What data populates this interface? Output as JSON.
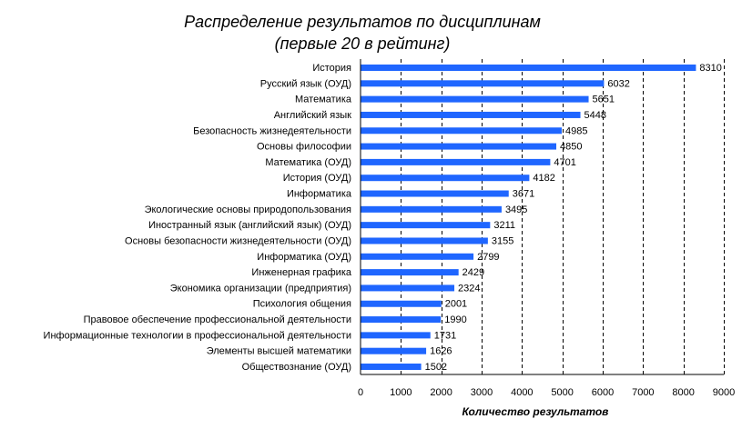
{
  "chart_data": {
    "type": "bar",
    "orientation": "horizontal",
    "title": "Распределение результатов по дисциплинам",
    "subtitle": "(первые 20 в рейтинг)",
    "xlabel": "Количество результатов",
    "ylabel": "",
    "xlim": [
      0,
      9000
    ],
    "xticks": [
      "0",
      "1000",
      "2000",
      "3000",
      "4000",
      "5000",
      "6000",
      "7000",
      "8000",
      "9000"
    ],
    "grid": "vertical dashed",
    "bar_color": "#1f66ff",
    "categories": [
      "История",
      "Русский язык (ОУД)",
      "Математика",
      "Английский язык",
      "Безопасность жизнедеятельности",
      "Основы философии",
      "Математика (ОУД)",
      "История (ОУД)",
      "Информатика",
      "Экологические основы природопользования",
      "Иностранный язык (английский язык) (ОУД)",
      "Основы безопасности жизнедеятельности (ОУД)",
      "Информатика (ОУД)",
      "Инженерная графика",
      "Экономика организации (предприятия)",
      "Психология общения",
      "Правовое обеспечение профессиональной деятельности",
      "Информационные технологии в профессиональной деятельности",
      "Элементы высшей математики",
      "Обществознание (ОУД)"
    ],
    "values": [
      8310,
      6032,
      5651,
      5448,
      4985,
      4850,
      4701,
      4182,
      3671,
      3495,
      3211,
      3155,
      2799,
      2429,
      2324,
      2001,
      1990,
      1731,
      1626,
      1502
    ]
  }
}
